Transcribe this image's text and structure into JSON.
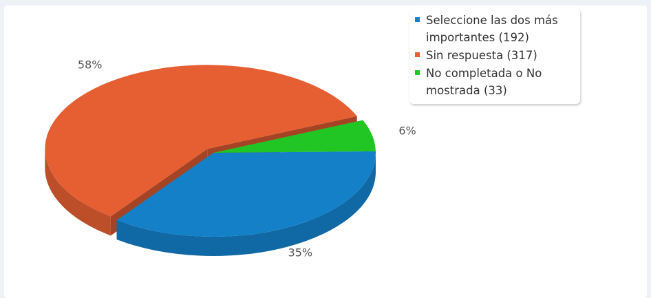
{
  "chart_data": {
    "type": "pie",
    "title": "",
    "slices": [
      {
        "label": "Seleccione las dos más importantes (192)",
        "value": 192,
        "percent_label": "35%",
        "color": "#1380c8"
      },
      {
        "label": "Sin respuesta (317)",
        "value": 317,
        "percent_label": "58%",
        "color": "#e55f33"
      },
      {
        "label": "No completada o No mostrada (33)",
        "value": 33,
        "percent_label": "6%",
        "color": "#22c624"
      }
    ],
    "legend_position": "top-right",
    "style": "3d-exploded"
  }
}
